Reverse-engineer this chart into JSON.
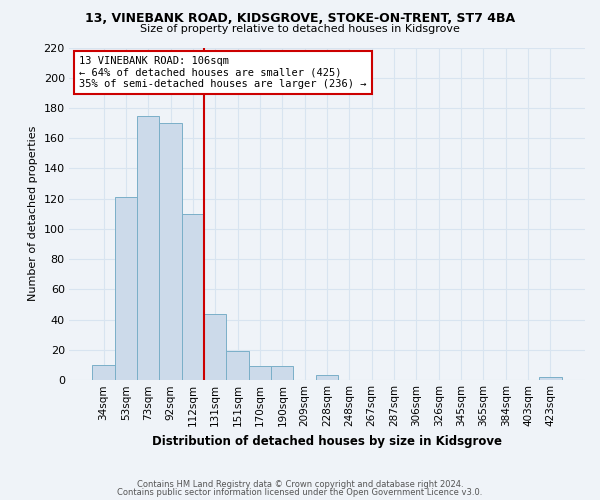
{
  "title": "13, VINEBANK ROAD, KIDSGROVE, STOKE-ON-TRENT, ST7 4BA",
  "subtitle": "Size of property relative to detached houses in Kidsgrove",
  "xlabel": "Distribution of detached houses by size in Kidsgrove",
  "ylabel": "Number of detached properties",
  "bar_labels": [
    "34sqm",
    "53sqm",
    "73sqm",
    "92sqm",
    "112sqm",
    "131sqm",
    "151sqm",
    "170sqm",
    "190sqm",
    "209sqm",
    "228sqm",
    "248sqm",
    "267sqm",
    "287sqm",
    "306sqm",
    "326sqm",
    "345sqm",
    "365sqm",
    "384sqm",
    "403sqm",
    "423sqm"
  ],
  "bar_values": [
    10,
    121,
    175,
    170,
    110,
    44,
    19,
    9,
    9,
    0,
    3,
    0,
    0,
    0,
    0,
    0,
    0,
    0,
    0,
    0,
    2
  ],
  "bar_color": "#ccdaea",
  "bar_edge_color": "#7aafc8",
  "vline_x_idx": 4,
  "vline_color": "#cc0000",
  "annotation_line1": "13 VINEBANK ROAD: 106sqm",
  "annotation_line2": "← 64% of detached houses are smaller (425)",
  "annotation_line3": "35% of semi-detached houses are larger (236) →",
  "annotation_box_color": "#ffffff",
  "annotation_box_edge": "#cc0000",
  "ylim": [
    0,
    220
  ],
  "yticks": [
    0,
    20,
    40,
    60,
    80,
    100,
    120,
    140,
    160,
    180,
    200,
    220
  ],
  "background_color": "#eff3f8",
  "grid_color": "#d8e4f0",
  "footer_line1": "Contains HM Land Registry data © Crown copyright and database right 2024.",
  "footer_line2": "Contains public sector information licensed under the Open Government Licence v3.0."
}
